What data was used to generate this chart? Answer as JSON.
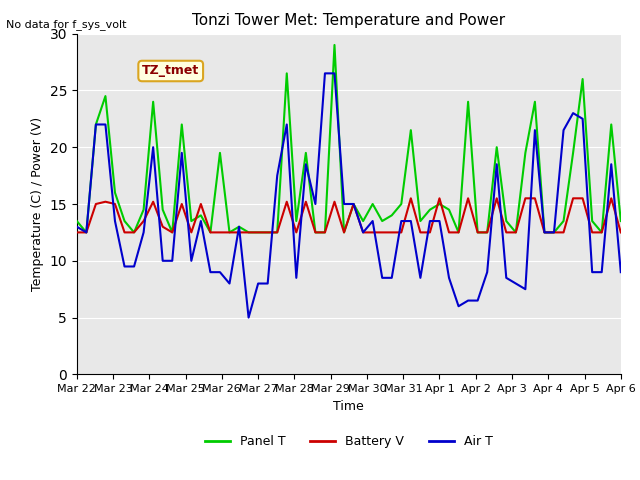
{
  "title": "Tonzi Tower Met: Temperature and Power",
  "ylabel": "Temperature (C) / Power (V)",
  "xlabel": "Time",
  "annotation_text": "No data for f_sys_volt",
  "legend_label": "TZ_tmet",
  "ylim": [
    0,
    30
  ],
  "yticks": [
    0,
    5,
    10,
    15,
    20,
    25,
    30
  ],
  "x_tick_labels": [
    "Mar 22",
    "Mar 23",
    "Mar 24",
    "Mar 25",
    "Mar 26",
    "Mar 27",
    "Mar 28",
    "Mar 29",
    "Mar 30",
    "Mar 31",
    "Apr 1",
    "Apr 2",
    "Apr 3",
    "Apr 4",
    "Apr 5",
    "Apr 6"
  ],
  "background_color": "#e8e8e8",
  "panel_color": "#00cc00",
  "battery_color": "#cc0000",
  "air_color": "#0000cc",
  "legend_entries": [
    "Panel T",
    "Battery V",
    "Air T"
  ],
  "panel_data": [
    13.5,
    12.5,
    22.0,
    24.5,
    16.0,
    13.5,
    12.5,
    14.5,
    24.0,
    14.5,
    12.5,
    22.0,
    13.5,
    14.0,
    12.5,
    19.5,
    12.5,
    13.0,
    12.5,
    12.5,
    12.5,
    12.5,
    26.5,
    13.5,
    19.5,
    12.5,
    12.5,
    29.0,
    12.5,
    15.0,
    13.5,
    15.0,
    13.5,
    14.0,
    15.0,
    21.5,
    13.5,
    14.5,
    15.0,
    14.5,
    12.5,
    24.0,
    12.5,
    12.5,
    20.0,
    13.5,
    12.5,
    19.5,
    24.0,
    12.5,
    12.5,
    13.5,
    19.5,
    26.0,
    13.5,
    12.5,
    22.0,
    13.5
  ],
  "battery_data": [
    12.5,
    12.5,
    15.0,
    15.2,
    15.0,
    12.5,
    12.5,
    13.5,
    15.2,
    13.0,
    12.5,
    15.0,
    12.5,
    15.0,
    12.5,
    12.5,
    12.5,
    12.5,
    12.5,
    12.5,
    12.5,
    12.5,
    15.2,
    12.5,
    15.2,
    12.5,
    12.5,
    15.2,
    12.5,
    15.0,
    12.5,
    12.5,
    12.5,
    12.5,
    12.5,
    15.5,
    12.5,
    12.5,
    15.5,
    12.5,
    12.5,
    15.5,
    12.5,
    12.5,
    15.5,
    12.5,
    12.5,
    15.5,
    15.5,
    12.5,
    12.5,
    12.5,
    15.5,
    15.5,
    12.5,
    12.5,
    15.5,
    12.5
  ],
  "air_data": [
    13.0,
    12.5,
    22.0,
    22.0,
    13.5,
    9.5,
    9.5,
    12.5,
    20.0,
    10.0,
    10.0,
    19.5,
    10.0,
    13.5,
    9.0,
    9.0,
    8.0,
    13.0,
    5.0,
    8.0,
    8.0,
    17.5,
    22.0,
    8.5,
    18.5,
    15.0,
    26.5,
    26.5,
    15.0,
    15.0,
    12.5,
    13.5,
    8.5,
    8.5,
    13.5,
    13.5,
    8.5,
    13.5,
    13.5,
    8.5,
    6.0,
    6.5,
    6.5,
    9.0,
    18.5,
    8.5,
    8.0,
    7.5,
    21.5,
    12.5,
    12.5,
    21.5,
    23.0,
    22.5,
    9.0,
    9.0,
    18.5,
    9.0
  ]
}
